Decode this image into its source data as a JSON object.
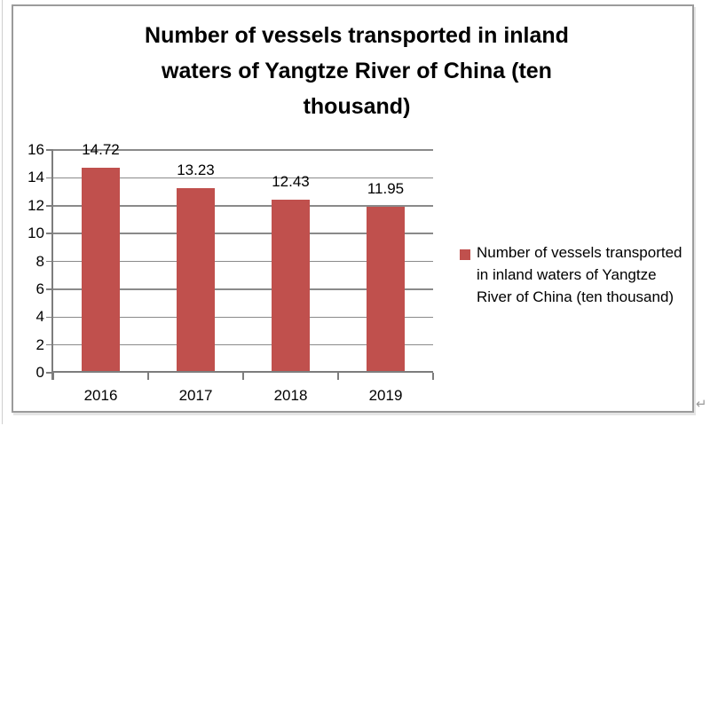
{
  "chart_data": {
    "type": "bar",
    "title": "Number of vessels transported in inland waters of Yangtze River of China (ten thousand)",
    "title_lines": [
      "Number of vessels transported in inland",
      "waters of Yangtze River of China (ten",
      "thousand)"
    ],
    "categories": [
      "2016",
      "2017",
      "2018",
      "2019"
    ],
    "values": [
      14.72,
      13.23,
      12.43,
      11.95
    ],
    "value_labels": [
      "14.72",
      "13.23",
      "12.43",
      "11.95"
    ],
    "series_name": "Number of vessels transported in inland waters of Yangtze River of China (ten thousand)",
    "legend_lines": [
      "Number of vessels transported",
      "in inland waters of Yangtze",
      "River of China (ten thousand)"
    ],
    "legend_position": "right",
    "xlabel": "",
    "ylabel": "",
    "ylim": [
      0,
      16
    ],
    "y_ticks": [
      0,
      2,
      4,
      6,
      8,
      10,
      12,
      14,
      16
    ],
    "grid": true,
    "data_labels": true,
    "bar_color": "#C0504D",
    "gridline_color": "#8a8a8a",
    "axis_color": "#7d7d7d",
    "text_color": "#000000"
  },
  "word": {
    "paragraph_mark": "↵"
  }
}
